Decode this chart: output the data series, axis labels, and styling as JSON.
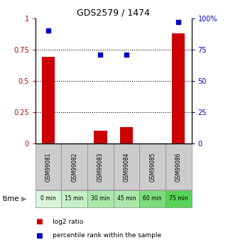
{
  "title": "GDS2579 / 1474",
  "samples": [
    "GSM99081",
    "GSM99082",
    "GSM99083",
    "GSM99084",
    "GSM99085",
    "GSM99086"
  ],
  "time_labels": [
    "0 min",
    "15 min",
    "30 min",
    "45 min",
    "60 min",
    "75 min"
  ],
  "log2_ratio": [
    0.69,
    0.0,
    0.1,
    0.13,
    0.0,
    0.88
  ],
  "percentile_rank": [
    0.9,
    null,
    0.71,
    0.71,
    null,
    0.97
  ],
  "bar_color": "#cc0000",
  "dot_color": "#0000cc",
  "sample_bg": "#cccccc",
  "time_bg_colors": [
    "#d9f5d9",
    "#c5f0c5",
    "#aae8aa",
    "#aae8aa",
    "#7ddc7d",
    "#55d455"
  ],
  "ylim_left": [
    0,
    1.0
  ],
  "ylim_right": [
    0,
    100
  ],
  "yticks_left": [
    0,
    0.25,
    0.5,
    0.75,
    1.0
  ],
  "ytick_labels_left": [
    "0",
    "0.25",
    "0.5",
    "0.75",
    "1"
  ],
  "yticks_right": [
    0,
    25,
    50,
    75,
    100
  ],
  "ytick_labels_right": [
    "0",
    "25",
    "50",
    "75",
    "100%"
  ],
  "legend_items": [
    "log2 ratio",
    "percentile rank within the sample"
  ],
  "legend_colors": [
    "#cc0000",
    "#0000cc"
  ],
  "time_label": "time"
}
